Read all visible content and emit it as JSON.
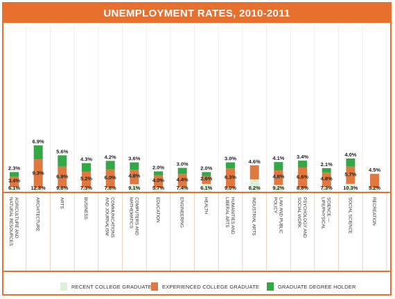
{
  "chart_data": {
    "type": "bar",
    "title": "UNEMPLOYMENT RATES, 2010-2011",
    "stacked_display": true,
    "categories": [
      "AGRICULTURE AND NATURAL RESOURCES",
      "ARCHITECTURE",
      "ARTS",
      "BUSINESS",
      "COMMUNICATIONS AND JOURNALISM",
      "COMPUTERS AND MATHEMATICS",
      "EDUCATION",
      "ENGINEERING",
      "HEALTH",
      "HUMANITIES AND LIBERAL ARTS",
      "INDUSTRIAL ARTS",
      "LAW AND PUBLIC POLICY",
      "PSYCHOLOGY AND SOCIAL WORK",
      "SCIENCE — LIFE/PHYSICAL",
      "SOCIAL SCIENCE",
      "RECREATION"
    ],
    "series": [
      {
        "name": "RECENT COLLEGE GRADUATE",
        "color": "#dcefd9",
        "values": [
          6.1,
          12.8,
          9.8,
          7.3,
          7.8,
          9.1,
          5.7,
          7.4,
          6.1,
          9.0,
          8.2,
          9.2,
          8.8,
          7.3,
          10.3,
          5.2
        ],
        "labels": [
          "6.1%",
          "12.8%",
          "9.8%",
          "7.3%",
          "7.8%",
          "9.1%",
          "5.7%",
          "7.4%",
          "6.1%",
          "9.0%",
          "8.2%",
          "9.2%",
          "8.8%",
          "7.3%",
          "10.3%",
          "5.2%"
        ]
      },
      {
        "name": "EXPERIENCED COLLEGE GRADUATE",
        "color": "#e07840",
        "values": [
          3.4,
          9.3,
          6.9,
          5.2,
          6.0,
          4.8,
          4.0,
          4.4,
          2.6,
          6.3,
          4.6,
          4.8,
          6.6,
          4.8,
          5.7,
          4.5
        ],
        "labels": [
          "3.4%",
          "9.3%",
          "6.9%",
          "5.2%",
          "6.0%",
          "4.8%",
          "4.0%",
          "4.4%",
          "2.6%",
          "6.3%",
          "4.6%",
          "4.8%",
          "6.6%",
          "4.8%",
          "5.7%",
          "4.5%"
        ]
      },
      {
        "name": "GRADUATE DEGREE HOLDER",
        "color": "#34a846",
        "values": [
          2.3,
          6.9,
          5.6,
          4.3,
          4.2,
          3.6,
          2.0,
          3.0,
          2.0,
          3.0,
          null,
          4.1,
          3.4,
          2.1,
          4.0,
          null
        ],
        "labels": [
          "2.3%",
          "6.9%",
          "5.6%",
          "4.3%",
          "4.2%",
          "3.6%",
          "2.0%",
          "3.0%",
          "2.0%",
          "3.0%",
          "",
          "4.1%",
          "3.4%",
          "2.1%",
          "4.0%",
          ""
        ]
      }
    ],
    "category_label_lines": [
      [
        "AGRICULTURE AND",
        "NATURAL RESOURCES"
      ],
      [
        "ARCHITECTURE"
      ],
      [
        "ARTS"
      ],
      [
        "BUSINESS"
      ],
      [
        "COMMUNICATIONS",
        "AND JOURNALISM"
      ],
      [
        "COMPUTERS AND",
        "MATHEMATICS"
      ],
      [
        "EDUCATION"
      ],
      [
        "ENGINEERING"
      ],
      [
        "HEALTH"
      ],
      [
        "HUMANITIES AND",
        "LIBERAL ARTS"
      ],
      [
        "INDUSTRIAL ARTS"
      ],
      [
        "LAW AND PUBLIC",
        "POLICY"
      ],
      [
        "PSYCHOLOGY AND",
        "SOCIAL WORK"
      ],
      [
        "SCIENCE —",
        "LIFE/PHYSICAL"
      ],
      [
        "SOCIAL SCIENCE"
      ],
      [
        "RECREATION"
      ]
    ],
    "legend_position": "bottom",
    "grid": false,
    "colors": {
      "accent": "#e7702f",
      "divider": "#e7702f"
    }
  }
}
